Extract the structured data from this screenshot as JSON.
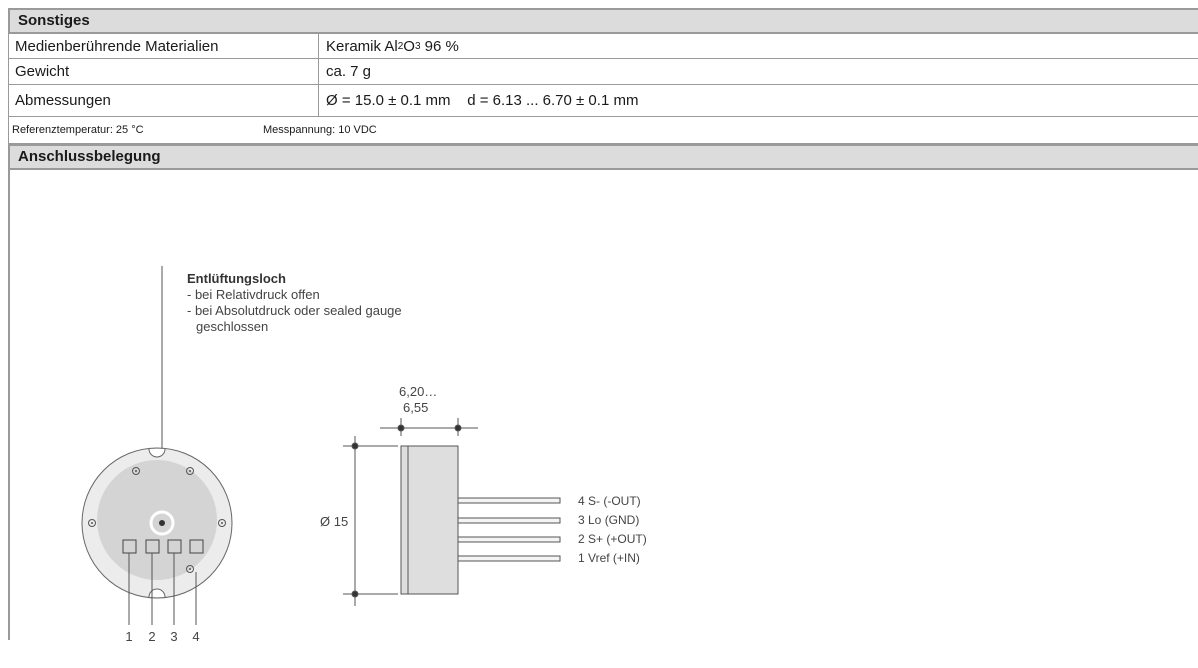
{
  "sonstiges": {
    "title": "Sonstiges",
    "rows": [
      {
        "label": "Medienberührende Materialien",
        "value_pre": "Keramik Al",
        "sub1": "2",
        "mid": "O",
        "sub2": "3",
        "value_post": " 96 %"
      },
      {
        "label": "Gewicht",
        "value": "ca. 7 g"
      },
      {
        "label": "Abmessungen",
        "value": "Ø = 15.0 ± 0.1 mm    d = 6.13 ... 6.70 ± 0.1 mm"
      }
    ],
    "notes": {
      "ref_temp": "Referenztemperatur: 25 °C",
      "mess": "Messpannung: 10 VDC"
    }
  },
  "anschluss": {
    "title": "Anschlussbelegung",
    "vent": {
      "title": "Entlüftungsloch",
      "line1": "- bei Relativdruck offen",
      "line2": "- bei Absolutdruck oder sealed gauge",
      "line3": "geschlossen"
    },
    "pin_numbers": [
      "1",
      "2",
      "3",
      "4"
    ],
    "dim_top1": "6,20…",
    "dim_top2": "6,55",
    "dim_dia": "Ø 15",
    "pins": [
      "4 S- (-OUT)",
      "3 Lo (GND)",
      "2 S+ (+OUT)",
      "1 Vref (+IN)"
    ]
  }
}
